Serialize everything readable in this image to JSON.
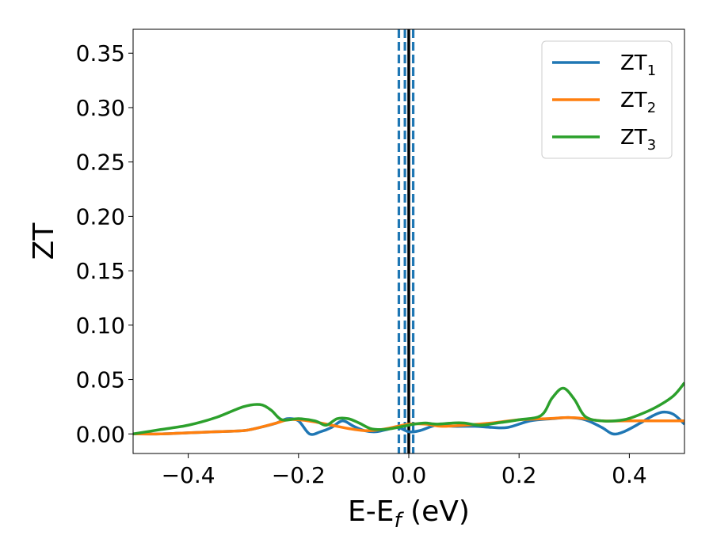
{
  "chart_data": {
    "type": "line",
    "xlabel": "E-E",
    "xlabel_sub": "f",
    "xlabel_unit": " (eV)",
    "ylabel": "ZT",
    "xlim": [
      -0.5,
      0.5
    ],
    "ylim": [
      -0.018,
      0.372
    ],
    "xticks": [
      -0.4,
      -0.2,
      0.0,
      0.2,
      0.4
    ],
    "xtick_labels": [
      "−0.4",
      "−0.2",
      "0.0",
      "0.2",
      "0.4"
    ],
    "yticks": [
      0.0,
      0.05,
      0.1,
      0.15,
      0.2,
      0.25,
      0.3,
      0.35
    ],
    "ytick_labels": [
      "0.00",
      "0.05",
      "0.10",
      "0.15",
      "0.20",
      "0.25",
      "0.30",
      "0.35"
    ],
    "grid": false,
    "legend_position": "top-right",
    "vlines": [
      {
        "x": 0.0,
        "style": "solid",
        "color": "#000000"
      },
      {
        "x": -0.018,
        "style": "dashed",
        "color": "#1f77b4"
      },
      {
        "x": -0.007,
        "style": "dashed",
        "color": "#1f77b4"
      },
      {
        "x": 0.008,
        "style": "dashed",
        "color": "#1f77b4"
      }
    ],
    "series": [
      {
        "name": "ZT",
        "name_sub": "1",
        "color": "#1f77b4",
        "x": [
          -0.5,
          -0.45,
          -0.4,
          -0.35,
          -0.3,
          -0.27,
          -0.24,
          -0.22,
          -0.2,
          -0.18,
          -0.16,
          -0.14,
          -0.12,
          -0.1,
          -0.08,
          -0.06,
          -0.04,
          -0.02,
          0.0,
          0.02,
          0.05,
          0.08,
          0.12,
          0.15,
          0.18,
          0.22,
          0.26,
          0.29,
          0.32,
          0.35,
          0.37,
          0.39,
          0.42,
          0.44,
          0.46,
          0.48,
          0.5
        ],
        "y": [
          0.0,
          0.0,
          0.001,
          0.002,
          0.003,
          0.006,
          0.01,
          0.014,
          0.012,
          0.0,
          0.002,
          0.006,
          0.012,
          0.007,
          0.003,
          0.002,
          0.004,
          0.006,
          0.002,
          0.003,
          0.008,
          0.007,
          0.007,
          0.006,
          0.006,
          0.012,
          0.014,
          0.015,
          0.013,
          0.006,
          0.0,
          0.002,
          0.01,
          0.016,
          0.02,
          0.018,
          0.009
        ]
      },
      {
        "name": "ZT",
        "name_sub": "2",
        "color": "#ff7f0e",
        "x": [
          -0.5,
          -0.45,
          -0.4,
          -0.35,
          -0.3,
          -0.27,
          -0.24,
          -0.22,
          -0.2,
          -0.17,
          -0.14,
          -0.11,
          -0.08,
          -0.05,
          -0.02,
          0.0,
          0.03,
          0.06,
          0.1,
          0.15,
          0.2,
          0.25,
          0.29,
          0.32,
          0.35,
          0.4,
          0.45,
          0.5
        ],
        "y": [
          0.0,
          0.0,
          0.001,
          0.002,
          0.003,
          0.006,
          0.01,
          0.013,
          0.013,
          0.011,
          0.008,
          0.005,
          0.003,
          0.004,
          0.007,
          0.009,
          0.009,
          0.007,
          0.008,
          0.01,
          0.013,
          0.014,
          0.015,
          0.014,
          0.012,
          0.012,
          0.012,
          0.012
        ]
      },
      {
        "name": "ZT",
        "name_sub": "3",
        "color": "#2ca02c",
        "x": [
          -0.5,
          -0.45,
          -0.4,
          -0.35,
          -0.3,
          -0.27,
          -0.25,
          -0.23,
          -0.2,
          -0.17,
          -0.15,
          -0.13,
          -0.11,
          -0.09,
          -0.07,
          -0.05,
          -0.03,
          -0.01,
          0.01,
          0.03,
          0.05,
          0.08,
          0.1,
          0.13,
          0.16,
          0.2,
          0.24,
          0.26,
          0.28,
          0.3,
          0.32,
          0.35,
          0.39,
          0.42,
          0.45,
          0.48,
          0.5
        ],
        "y": [
          0.0,
          0.004,
          0.008,
          0.015,
          0.025,
          0.027,
          0.022,
          0.013,
          0.014,
          0.012,
          0.008,
          0.014,
          0.014,
          0.01,
          0.005,
          0.004,
          0.005,
          0.007,
          0.009,
          0.01,
          0.009,
          0.01,
          0.01,
          0.008,
          0.01,
          0.013,
          0.017,
          0.033,
          0.042,
          0.032,
          0.016,
          0.012,
          0.013,
          0.018,
          0.025,
          0.035,
          0.047
        ]
      }
    ]
  }
}
